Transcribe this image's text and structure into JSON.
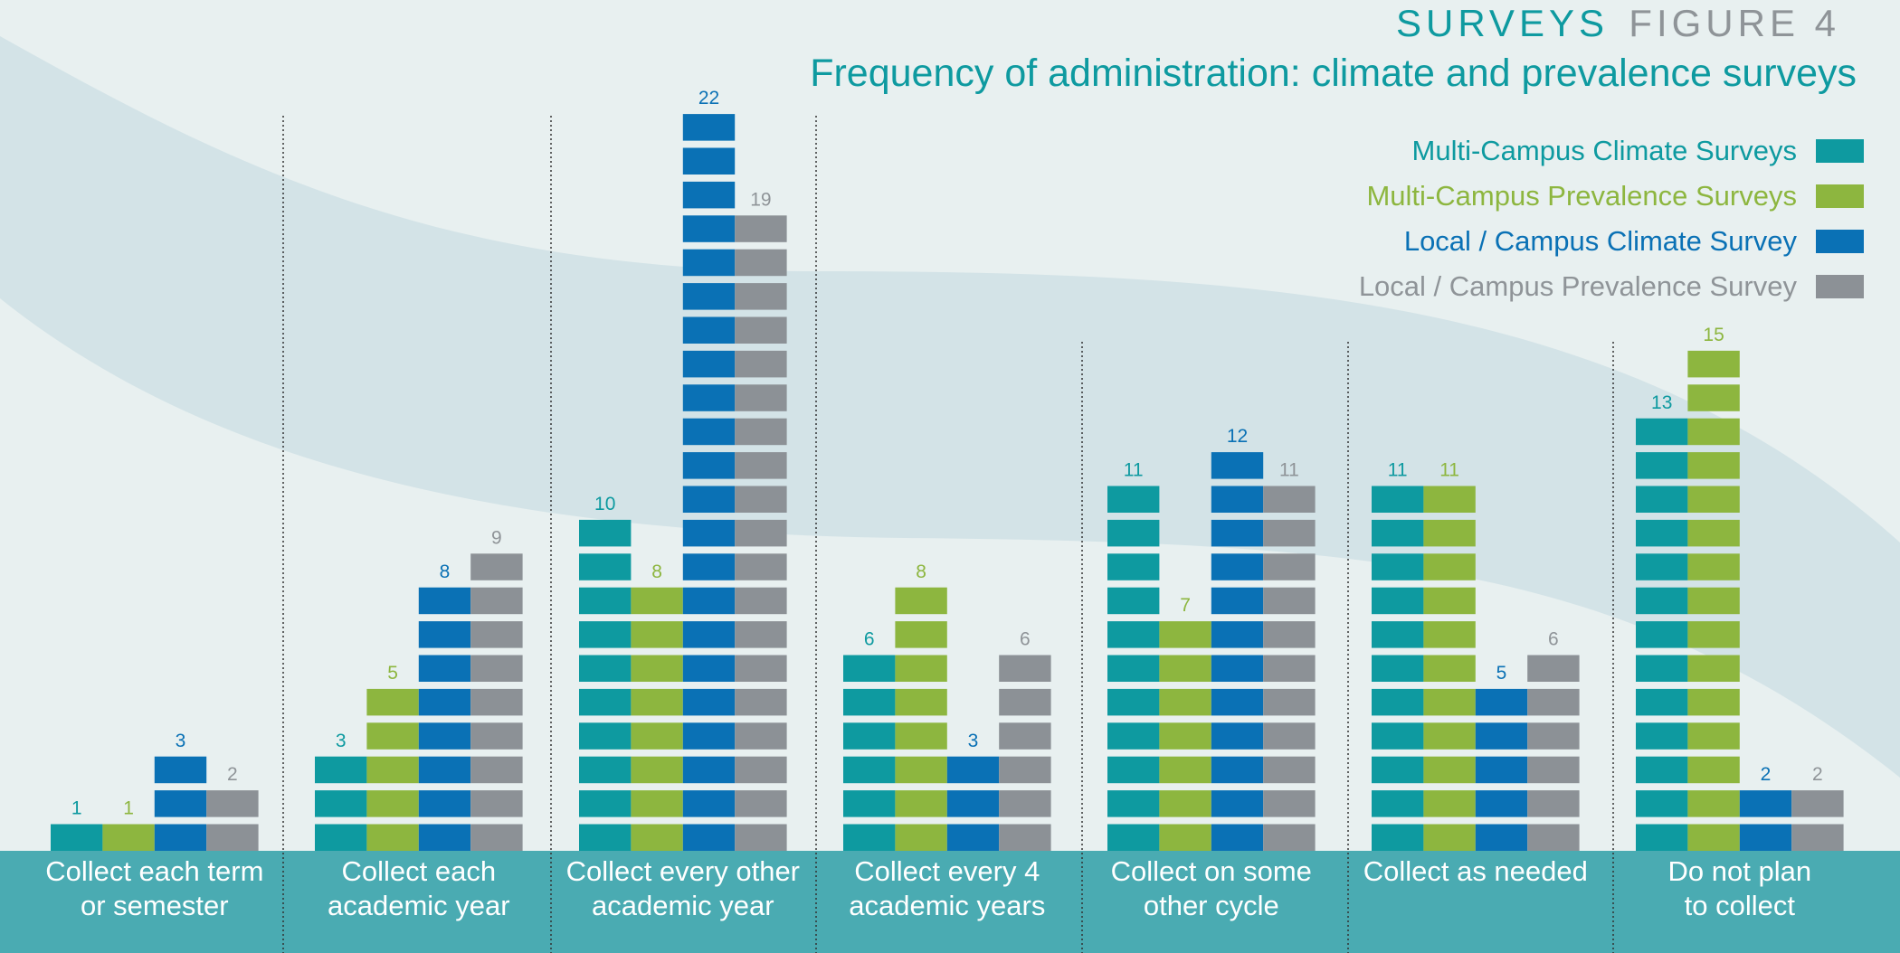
{
  "header": {
    "section": "SURVEYS",
    "figure": "FIGURE 4",
    "title": "Frequency of administration: climate and prevalence surveys"
  },
  "colors": {
    "background": "#e8f0f0",
    "wave": "#d3e3e7",
    "footer": "#4aabb2",
    "Multi-Campus Climate Surveys": "#0e9aa0",
    "Multi-Campus Prevalence Surveys": "#8db63f",
    "Local / Campus Climate Survey": "#0a71b5",
    "Local / Campus Prevalence Survey": "#8c9196",
    "label_gray": "#8f9498"
  },
  "chart_data": {
    "type": "bar",
    "title": "Frequency of administration: climate and prevalence surveys",
    "categories": [
      [
        "Collect each term",
        "or semester"
      ],
      [
        "Collect each",
        "academic year"
      ],
      [
        "Collect every other",
        "academic year"
      ],
      [
        "Collect every 4",
        "academic years"
      ],
      [
        "Collect on some",
        "other cycle"
      ],
      [
        "Collect as needed"
      ],
      [
        "Do not plan",
        "to collect"
      ]
    ],
    "series": [
      {
        "name": "Multi-Campus Climate Surveys",
        "values": [
          1,
          3,
          10,
          6,
          11,
          11,
          13
        ]
      },
      {
        "name": "Multi-Campus Prevalence Surveys",
        "values": [
          1,
          5,
          8,
          8,
          7,
          11,
          15
        ]
      },
      {
        "name": "Local / Campus Climate Survey",
        "values": [
          3,
          8,
          22,
          3,
          12,
          5,
          2
        ]
      },
      {
        "name": "Local / Campus Prevalence Survey",
        "values": [
          2,
          9,
          19,
          6,
          11,
          6,
          2
        ]
      }
    ],
    "bar_style": "stacked unit blocks, one block per survey",
    "legend_position": "top-right",
    "grid": false
  }
}
